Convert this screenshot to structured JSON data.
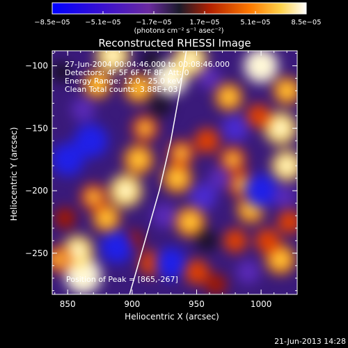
{
  "chart_data": {
    "type": "heatmap",
    "title": "Reconstructed RHESSI Image",
    "xlabel": "Heliocentric X (arcsec)",
    "ylabel": "Heliocentric Y (arcsec)",
    "xlim": [
      838,
      1028
    ],
    "ylim": [
      -283,
      -88
    ],
    "x_ticks": [
      {
        "value": 850,
        "label": "850"
      },
      {
        "value": 900,
        "label": "900"
      },
      {
        "value": 950,
        "label": "950"
      },
      {
        "value": 1000,
        "label": "1000"
      }
    ],
    "y_ticks": [
      {
        "value": -100,
        "label": "−100"
      },
      {
        "value": -150,
        "label": "−150"
      },
      {
        "value": -200,
        "label": "−200"
      },
      {
        "value": -250,
        "label": "−250"
      }
    ],
    "colorbar": {
      "range": [
        -8.5e-05,
        8.5e-05
      ],
      "tick_labels": [
        "−8.5e−05",
        "−5.1e−05",
        "−1.7e−05",
        "1.7e−05",
        "5.1e−05",
        "8.5e−05"
      ],
      "units": "(photons cm⁻² s⁻¹ asec⁻²)",
      "colormap": [
        "#0000ff",
        "#5a1fb0",
        "#1a1a2a",
        "#b22000",
        "#ff7a00",
        "#ffd24a",
        "#ffffff"
      ]
    },
    "annotations": [
      "27-Jun-2004 00:04:46.000 to 00:08:46.000",
      "Detectors: 4F 5F 6F 7F 8F, Att: 0",
      "Energy Range: 12.0 - 25.0 keV",
      "Clean     Total counts: 3.88E+03"
    ],
    "peak_label": "Position of Peak = [865,-267]",
    "peak": [
      865,
      -267
    ],
    "limb_curve": [
      [
        898,
        -283
      ],
      [
        910,
        -240
      ],
      [
        921,
        -200
      ],
      [
        930,
        -160
      ],
      [
        937,
        -120
      ],
      [
        942,
        -88
      ]
    ],
    "blobs": [
      {
        "x": 862,
        "y": -268,
        "v": 1.0
      },
      {
        "x": 858,
        "y": -248,
        "v": 0.75
      },
      {
        "x": 842,
        "y": -255,
        "v": 0.55
      },
      {
        "x": 885,
        "y": -92,
        "v": 0.85
      },
      {
        "x": 873,
        "y": -115,
        "v": 0.6
      },
      {
        "x": 905,
        "y": -118,
        "v": 0.65
      },
      {
        "x": 930,
        "y": -110,
        "v": 0.9
      },
      {
        "x": 945,
        "y": -95,
        "v": 0.85
      },
      {
        "x": 905,
        "y": -175,
        "v": 0.7
      },
      {
        "x": 895,
        "y": -200,
        "v": 0.85
      },
      {
        "x": 880,
        "y": -222,
        "v": 0.6
      },
      {
        "x": 870,
        "y": -205,
        "v": 0.55
      },
      {
        "x": 848,
        "y": -222,
        "v": 0.35
      },
      {
        "x": 935,
        "y": -190,
        "v": 0.7
      },
      {
        "x": 938,
        "y": -170,
        "v": 0.55
      },
      {
        "x": 910,
        "y": -150,
        "v": 0.55
      },
      {
        "x": 958,
        "y": -160,
        "v": 0.5
      },
      {
        "x": 945,
        "y": -225,
        "v": 0.7
      },
      {
        "x": 975,
        "y": -125,
        "v": 0.6
      },
      {
        "x": 1000,
        "y": -100,
        "v": 0.9
      },
      {
        "x": 1020,
        "y": -120,
        "v": 0.6
      },
      {
        "x": 1015,
        "y": -150,
        "v": 0.85
      },
      {
        "x": 1020,
        "y": -180,
        "v": 0.75
      },
      {
        "x": 998,
        "y": -140,
        "v": 0.45
      },
      {
        "x": 1015,
        "y": -255,
        "v": 0.7
      },
      {
        "x": 1005,
        "y": -240,
        "v": 0.5
      },
      {
        "x": 992,
        "y": -215,
        "v": 0.6
      },
      {
        "x": 985,
        "y": -195,
        "v": 0.55
      },
      {
        "x": 978,
        "y": -175,
        "v": 0.55
      },
      {
        "x": 980,
        "y": -240,
        "v": 0.45
      },
      {
        "x": 950,
        "y": -265,
        "v": 0.5
      },
      {
        "x": 965,
        "y": -275,
        "v": 0.35
      },
      {
        "x": 915,
        "y": -258,
        "v": 0.5
      },
      {
        "x": 900,
        "y": -240,
        "v": 0.35
      },
      {
        "x": 1022,
        "y": -225,
        "v": 0.45
      },
      {
        "x": 868,
        "y": -160,
        "v": -0.9
      },
      {
        "x": 850,
        "y": -175,
        "v": -0.85
      },
      {
        "x": 888,
        "y": -245,
        "v": -0.85
      },
      {
        "x": 930,
        "y": -258,
        "v": -0.8
      },
      {
        "x": 1000,
        "y": -200,
        "v": -0.9
      },
      {
        "x": 980,
        "y": -150,
        "v": -0.6
      },
      {
        "x": 955,
        "y": -205,
        "v": -0.6
      },
      {
        "x": 925,
        "y": -220,
        "v": -0.5
      },
      {
        "x": 960,
        "y": -110,
        "v": -0.4
      },
      {
        "x": 915,
        "y": -95,
        "v": -0.3
      },
      {
        "x": 990,
        "y": -265,
        "v": -0.45
      },
      {
        "x": 1018,
        "y": -205,
        "v": -0.4
      },
      {
        "x": 862,
        "y": -135,
        "v": -0.45
      },
      {
        "x": 845,
        "y": -105,
        "v": -0.3
      },
      {
        "x": 958,
        "y": -240,
        "v": -0.35
      },
      {
        "x": 922,
        "y": -132,
        "v": -0.35
      },
      {
        "x": 968,
        "y": -190,
        "v": -0.4
      }
    ]
  },
  "footer": {
    "date": "21-Jun-2013 14:28"
  }
}
